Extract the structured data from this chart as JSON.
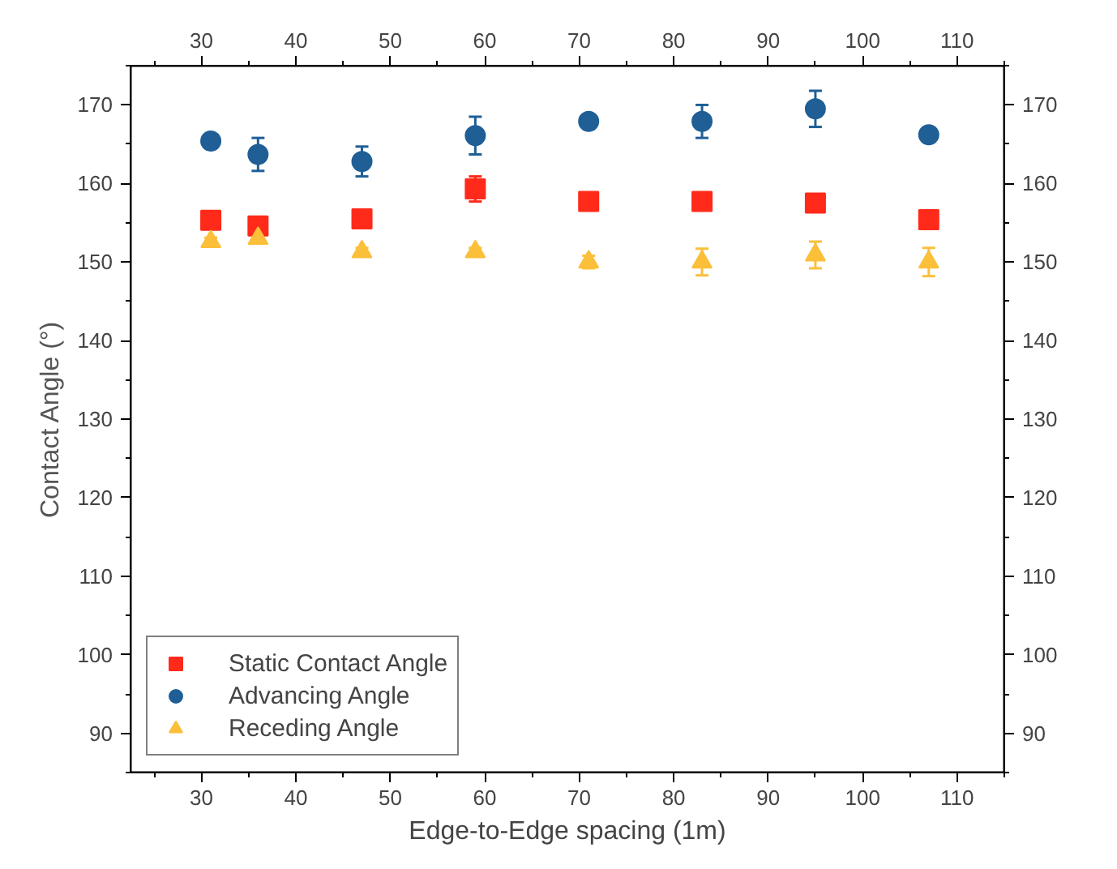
{
  "chart_data": {
    "type": "scatter",
    "xlabel": "Edge-to-Edge spacing (1m)",
    "ylabel": "Contact Angle (°)",
    "x": [
      31,
      36,
      47,
      59,
      71,
      83,
      95,
      107
    ],
    "series": [
      {
        "name": "Static Contact Angle",
        "color": "#ff2a1a",
        "marker": "square",
        "values": [
          155.3,
          154.6,
          155.5,
          159.3,
          157.7,
          157.7,
          157.5,
          155.4
        ],
        "errors": [
          0.5,
          0.5,
          0.5,
          1.6,
          0.5,
          0.6,
          1.0,
          0.5
        ]
      },
      {
        "name": "Advancing Angle",
        "color": "#1f5f96",
        "marker": "circle",
        "values": [
          165.4,
          163.7,
          162.8,
          166.1,
          167.9,
          167.9,
          169.5,
          166.2
        ],
        "errors": [
          0.4,
          2.1,
          1.9,
          2.4,
          0.4,
          2.1,
          2.3,
          0.6
        ]
      },
      {
        "name": "Receding Angle",
        "color": "#fbbf3a",
        "marker": "triangle",
        "values": [
          152.6,
          153.0,
          151.3,
          151.3,
          150.0,
          150.0,
          150.9,
          150.0
        ],
        "errors": [
          0.5,
          0.5,
          0.5,
          0.5,
          0.8,
          1.7,
          1.7,
          1.8
        ]
      }
    ],
    "xlim": [
      22.5,
      115
    ],
    "xticks": [
      30,
      40,
      50,
      60,
      70,
      80,
      90,
      100,
      110
    ],
    "x2lim": [
      22.5,
      115
    ],
    "x2ticks": [
      30,
      40,
      50,
      60,
      70,
      80,
      90,
      100,
      110
    ],
    "ylim": [
      85,
      175
    ],
    "yticks": [
      90,
      100,
      110,
      120,
      130,
      140,
      150,
      160,
      170
    ],
    "y2lim": [
      85,
      175
    ],
    "y2ticks": [
      90,
      100,
      110,
      120,
      130,
      140,
      150,
      160,
      170
    ],
    "grid": false,
    "legend": "bottom left"
  }
}
